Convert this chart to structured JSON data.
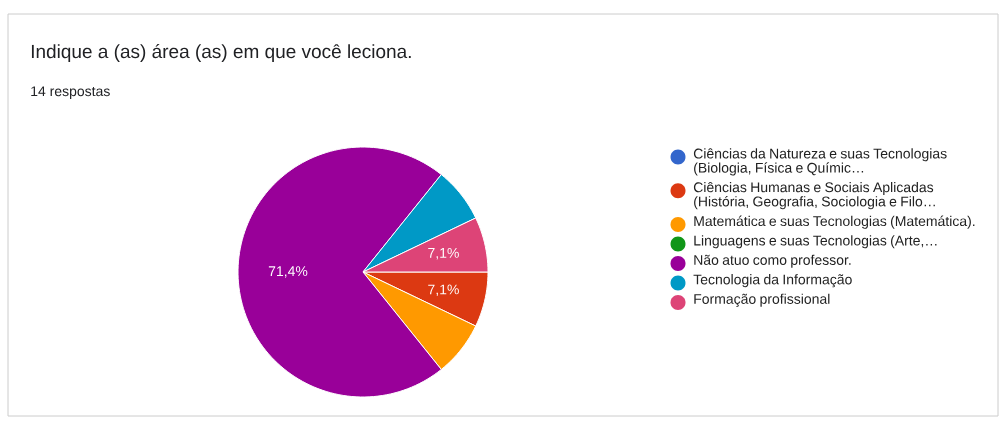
{
  "chart_data": {
    "type": "pie",
    "title": "Indique a (as) área (as) em que você leciona.",
    "subtitle": "14 respostas",
    "categories": [
      "Ciências da Natureza e suas Tecnologias (Biologia, Física e Químic…",
      "Ciências Humanas e Sociais Aplicadas (História, Geografia, Sociologia e Filo…",
      "Matemática e suas Tecnologias (Matemática).",
      "Linguagens e suas Tecnologias (Arte,…",
      "Não atuo como professor.",
      "Tecnologia da Informação",
      "Formação profissional"
    ],
    "values": [
      0,
      7.1,
      7.1,
      0,
      71.4,
      7.1,
      7.1
    ],
    "colors": [
      "#3366cc",
      "#dc3912",
      "#ff9900",
      "#109618",
      "#990099",
      "#0099c6",
      "#dd4477"
    ],
    "value_labels": [
      null,
      "7,1%",
      null,
      null,
      "71,4%",
      null,
      "7,1%"
    ],
    "legend": "right"
  }
}
